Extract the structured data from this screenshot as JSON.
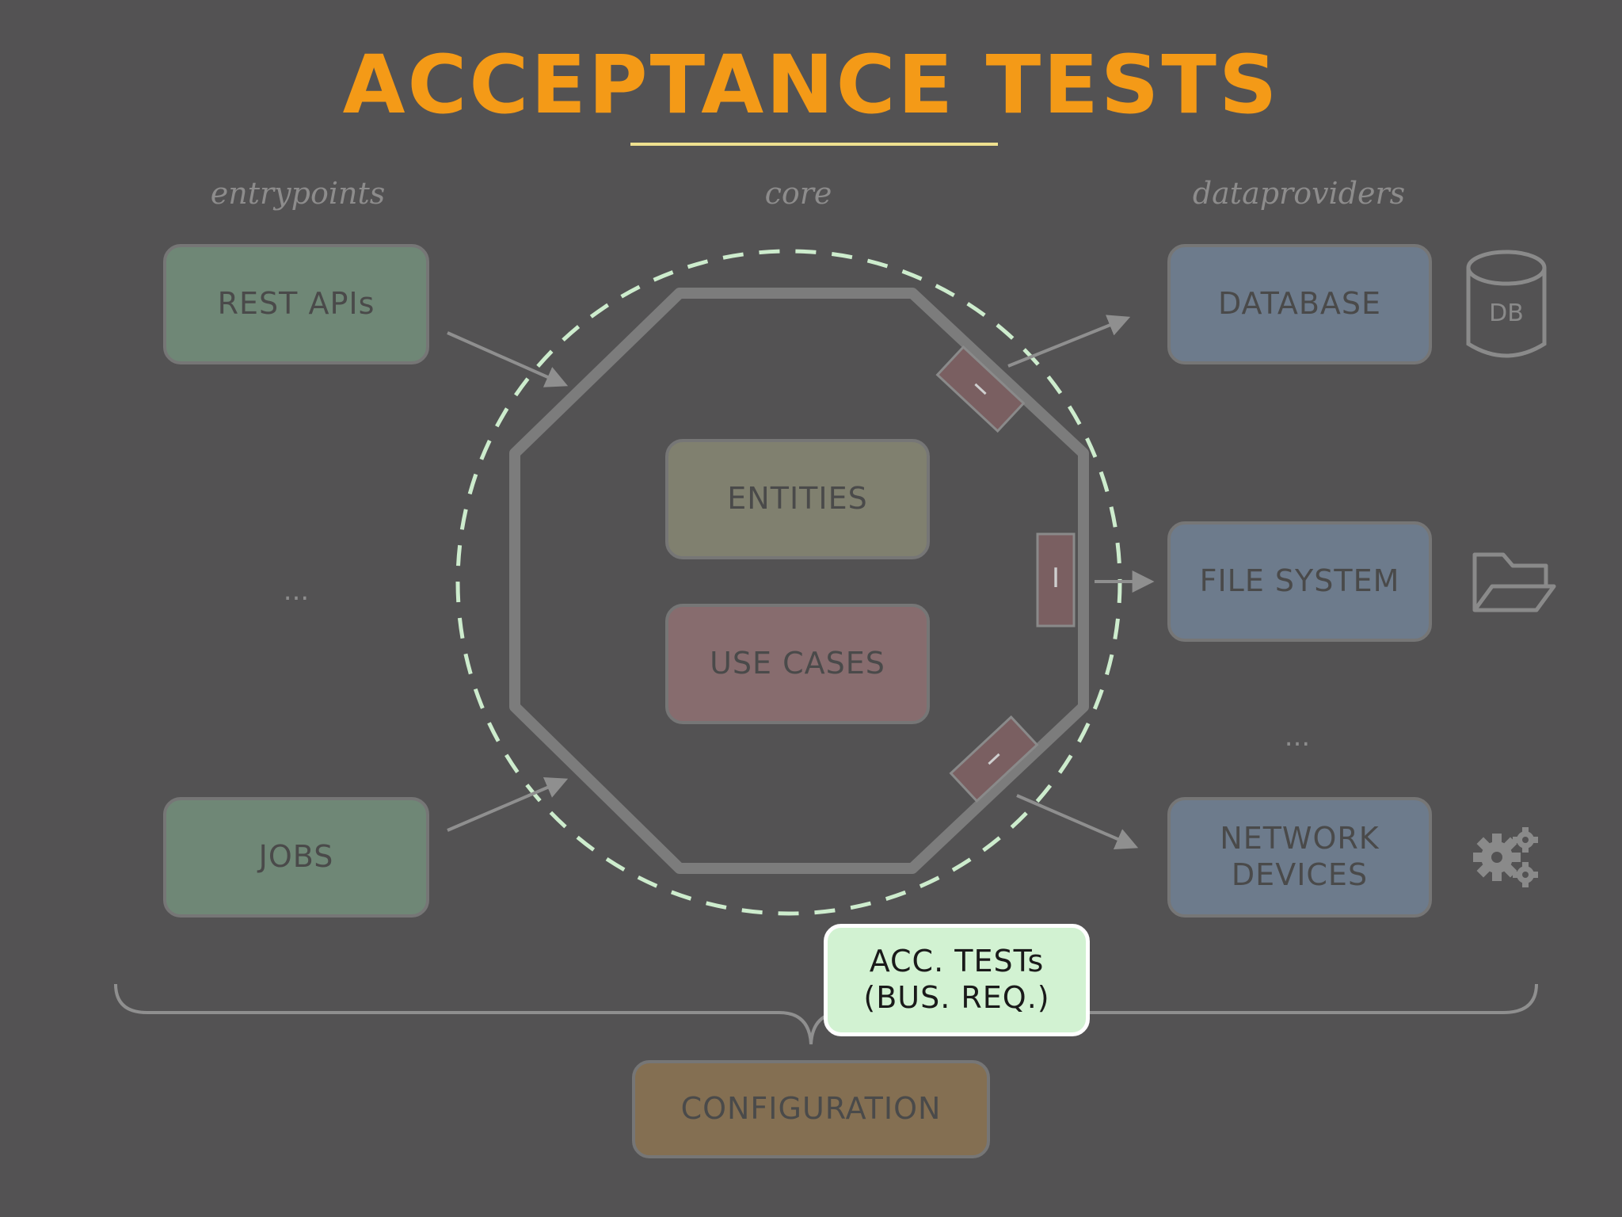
{
  "title": "ACCEPTANCE TESTS",
  "sections": {
    "entrypoints": "entrypoints",
    "core": "core",
    "dataproviders": "dataproviders"
  },
  "entrypoints": {
    "rest_apis": "REST APIs",
    "ellipsis": "...",
    "jobs": "JOBS"
  },
  "core": {
    "entities": "ENTITIES",
    "use_cases": "USE CASES",
    "interface_label": "I"
  },
  "dataproviders": {
    "database": "DATABASE",
    "database_icon_text": "DB",
    "file_system": "FILE SYSTEM",
    "ellipsis": "...",
    "network_devices_line1": "NETWORK",
    "network_devices_line2": "DEVICES"
  },
  "tests_badge": {
    "line1": "ACC. TESTs",
    "line2": "(BUS. REQ.)"
  },
  "configuration": "CONFIGURATION",
  "icons": {
    "database": "database-cylinder-icon",
    "file_system": "open-folder-icon",
    "network_devices": "gears-icon"
  },
  "colors": {
    "title": "#f49a17",
    "test_boundary": "#cdeccd",
    "entrypoint_box": "#6f8776",
    "dataprovider_box": "#6d7b8c"
  }
}
